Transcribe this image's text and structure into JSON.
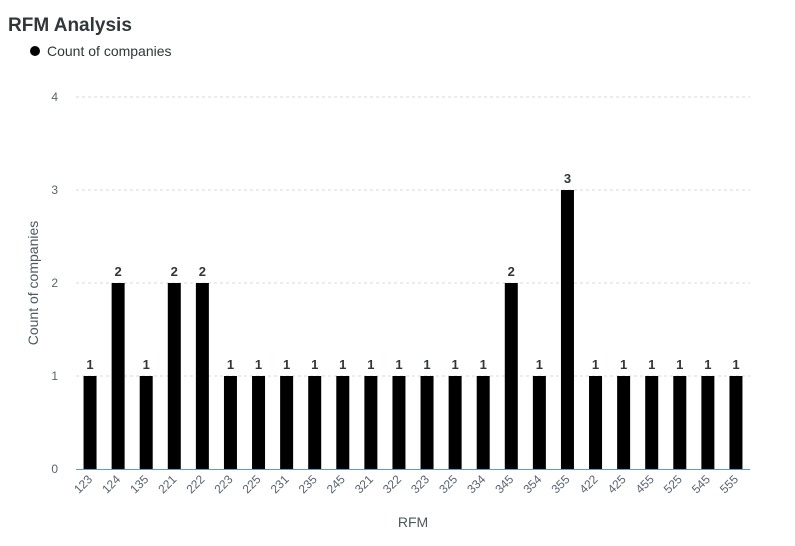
{
  "title": "RFM Analysis",
  "legend": {
    "label": "Count of companies",
    "color": "#000000"
  },
  "colors": {
    "bar": "#000000",
    "grid": "#d9d9d9",
    "axis": "#5b9bd5"
  },
  "chart_data": {
    "type": "bar",
    "title": "RFM Analysis",
    "xlabel": "RFM",
    "ylabel": "Count of companies",
    "ylim": [
      0,
      4
    ],
    "yticks": [
      0,
      1,
      2,
      3,
      4
    ],
    "grid": true,
    "legend_position": "top-left",
    "categories": [
      "123",
      "124",
      "135",
      "221",
      "222",
      "223",
      "225",
      "231",
      "235",
      "245",
      "321",
      "322",
      "323",
      "325",
      "334",
      "345",
      "354",
      "355",
      "422",
      "425",
      "455",
      "525",
      "545",
      "555"
    ],
    "series": [
      {
        "name": "Count of companies",
        "values": [
          1,
          2,
          1,
          2,
          2,
          1,
          1,
          1,
          1,
          1,
          1,
          1,
          1,
          1,
          1,
          2,
          1,
          3,
          1,
          1,
          1,
          1,
          1,
          1
        ]
      }
    ]
  }
}
